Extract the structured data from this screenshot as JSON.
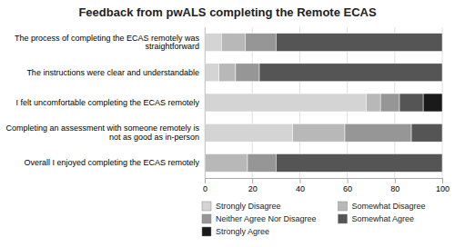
{
  "chart_data": {
    "type": "bar",
    "orientation": "horizontal",
    "stacked": true,
    "title": "Feedback from pwALS completing the Remote ECAS",
    "categories": [
      "The process of completing the ECAS remotely was\nstraightforward",
      "The instructions were clear and understandable",
      "I felt uncomfortable completing the ECAS remotely",
      "Completing an assessment with someone remotely is\nnot as good as in-person",
      "Overall I enjoyed completing the ECAS remotely"
    ],
    "series": [
      {
        "name": "Strongly Disagree",
        "color": "#d4d4d4",
        "values": [
          7,
          6,
          68,
          37,
          0
        ]
      },
      {
        "name": "Somewhat Disagree",
        "color": "#b8b8b8",
        "values": [
          10,
          7,
          6,
          22,
          18
        ]
      },
      {
        "name": "Neither Agree Nor Disagree",
        "color": "#969696",
        "values": [
          13,
          10,
          8,
          28,
          12
        ]
      },
      {
        "name": "Somewhat Agree",
        "color": "#555555",
        "values": [
          70,
          77,
          10,
          13,
          70
        ]
      },
      {
        "name": "Strongly Agree",
        "color": "#1a1a1a",
        "values": [
          0,
          0,
          8,
          0,
          0
        ]
      }
    ],
    "xlim": [
      0,
      100
    ],
    "xticks": [
      0,
      20,
      40,
      60,
      80,
      100
    ],
    "grid": true,
    "legend": "bottom"
  }
}
